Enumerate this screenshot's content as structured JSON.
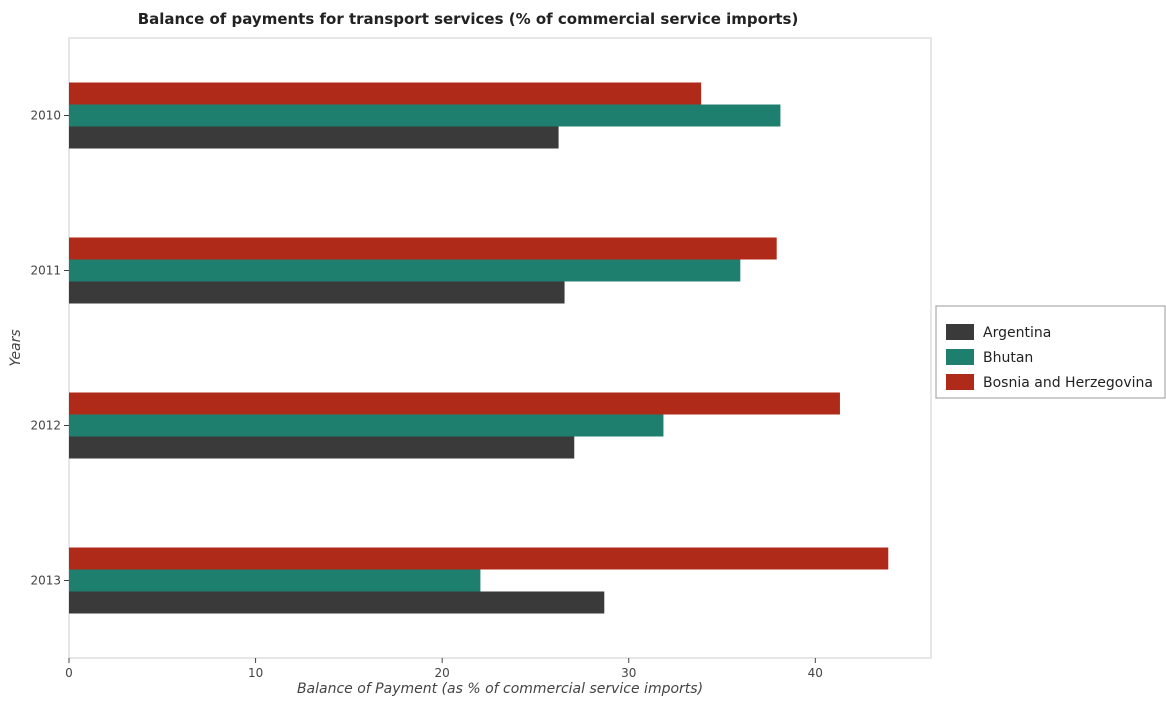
{
  "chart_data": {
    "type": "bar",
    "orientation": "horizontal",
    "title": "Balance of payments for transport services (% of commercial service imports)",
    "xlabel": "Balance of Payment (as % of commercial service imports)",
    "ylabel": "Years",
    "categories": [
      "2010",
      "2011",
      "2012",
      "2013"
    ],
    "xlim": [
      0,
      46.2
    ],
    "xticks": [
      0,
      10,
      20,
      30,
      40
    ],
    "grid": false,
    "legend_position": "right",
    "series": [
      {
        "name": "Argentina",
        "color": "#3a3a3a",
        "values": [
          26.24,
          26.56,
          27.08,
          28.69
        ]
      },
      {
        "name": "Bhutan",
        "color": "#1f7f6f",
        "values": [
          38.13,
          35.98,
          31.86,
          22.05
        ]
      },
      {
        "name": "Bosnia and Herzegovina",
        "color": "#b02a1a",
        "values": [
          33.88,
          37.93,
          41.32,
          43.91
        ]
      }
    ]
  }
}
